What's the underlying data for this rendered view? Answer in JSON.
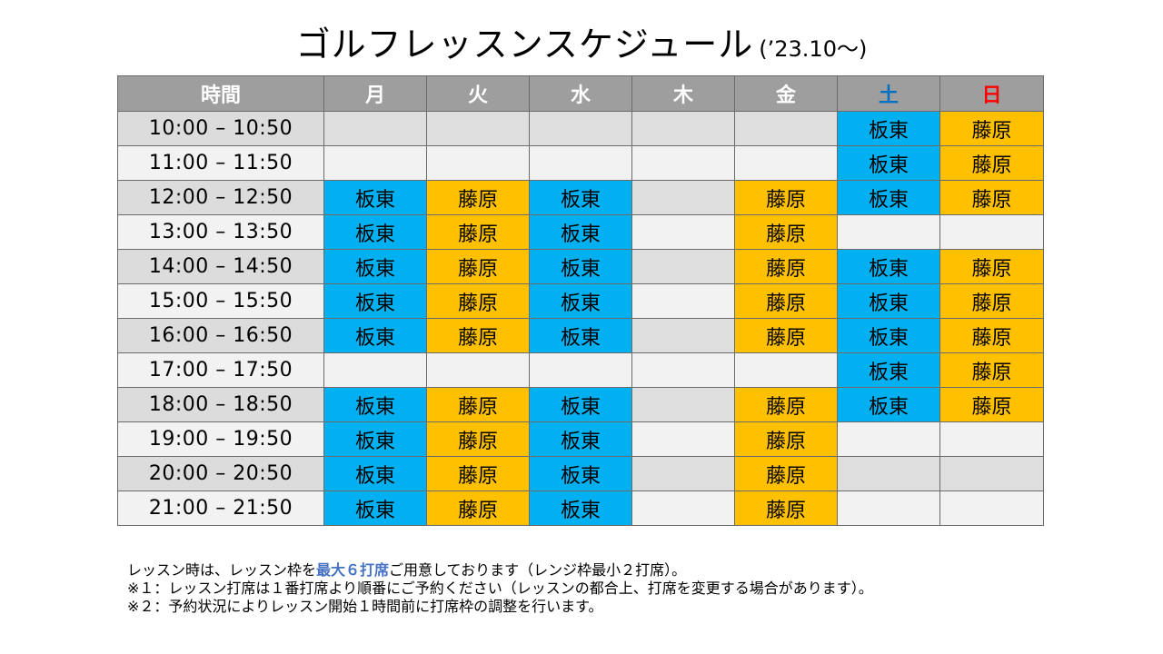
{
  "title": {
    "main": "ゴルフレッスンスケジュール",
    "sub": "(’23.10～)"
  },
  "colors": {
    "header_bg": "#9e9e9e",
    "header_text": "#ffffff",
    "saturday_text": "#0070c0",
    "sunday_text": "#ff0000",
    "bando_bg": "#00b0f0",
    "bando_text": "#ffffff",
    "fujiwara_bg": "#ffc000",
    "fujiwara_text": "#000000",
    "empty_dark": "#dedede",
    "empty_light": "#f2f2f2"
  },
  "columns": [
    {
      "label": "時間",
      "color": "#ffffff"
    },
    {
      "label": "月",
      "color": "#ffffff"
    },
    {
      "label": "火",
      "color": "#ffffff"
    },
    {
      "label": "水",
      "color": "#ffffff"
    },
    {
      "label": "木",
      "color": "#ffffff"
    },
    {
      "label": "金",
      "color": "#ffffff"
    },
    {
      "label": "土",
      "color": "#0070c0"
    },
    {
      "label": "日",
      "color": "#ff0000"
    }
  ],
  "rows": [
    {
      "time": "10:00 – 10:50",
      "slots": [
        "",
        "",
        "",
        "",
        "",
        "板東",
        "藤原"
      ]
    },
    {
      "time": "11:00 – 11:50",
      "slots": [
        "",
        "",
        "",
        "",
        "",
        "板東",
        "藤原"
      ]
    },
    {
      "time": "12:00 – 12:50",
      "slots": [
        "板東",
        "藤原",
        "板東",
        "",
        "藤原",
        "板東",
        "藤原"
      ]
    },
    {
      "time": "13:00 – 13:50",
      "slots": [
        "板東",
        "藤原",
        "板東",
        "",
        "藤原",
        "",
        ""
      ]
    },
    {
      "time": "14:00 – 14:50",
      "slots": [
        "板東",
        "藤原",
        "板東",
        "",
        "藤原",
        "板東",
        "藤原"
      ]
    },
    {
      "time": "15:00 – 15:50",
      "slots": [
        "板東",
        "藤原",
        "板東",
        "",
        "藤原",
        "板東",
        "藤原"
      ]
    },
    {
      "time": "16:00 – 16:50",
      "slots": [
        "板東",
        "藤原",
        "板東",
        "",
        "藤原",
        "板東",
        "藤原"
      ]
    },
    {
      "time": "17:00 – 17:50",
      "slots": [
        "",
        "",
        "",
        "",
        "",
        "板東",
        "藤原"
      ]
    },
    {
      "time": "18:00 – 18:50",
      "slots": [
        "板東",
        "藤原",
        "板東",
        "",
        "藤原",
        "板東",
        "藤原"
      ]
    },
    {
      "time": "19:00 – 19:50",
      "slots": [
        "板東",
        "藤原",
        "板東",
        "",
        "藤原",
        "",
        ""
      ]
    },
    {
      "time": "20:00 – 20:50",
      "slots": [
        "板東",
        "藤原",
        "板東",
        "",
        "藤原",
        "",
        ""
      ]
    },
    {
      "time": "21:00 – 21:50",
      "slots": [
        "板東",
        "藤原",
        "板東",
        "",
        "藤原",
        "",
        ""
      ]
    }
  ],
  "notes": {
    "line1_before": "レッスン時は、レッスン枠を",
    "line1_highlight": "最大６打席",
    "line1_after": "ご用意しております（レンジ枠最小２打席）。",
    "line2": "※１：レッスン打席は１番打席より順番にご予約ください（レッスンの都合上、打席を変更する場合があります）。",
    "line3": "※２：予約状況によりレッスン開始１時間前に打席枠の調整を行います。"
  }
}
